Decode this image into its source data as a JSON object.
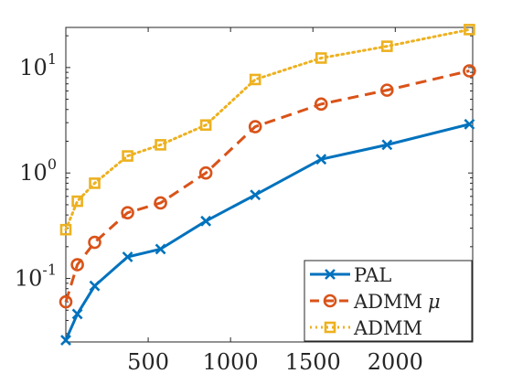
{
  "chart_data": {
    "type": "line",
    "title": "",
    "xlabel": "",
    "ylabel": "",
    "x_scale": "linear",
    "y_scale": "log",
    "xlim": [
      0,
      2470
    ],
    "ylim": [
      0.025,
      24
    ],
    "grid": false,
    "legend_position": "bottom-right",
    "x_ticks": [
      {
        "value": 500,
        "label": "500"
      },
      {
        "value": 1000,
        "label": "1000"
      },
      {
        "value": 1500,
        "label": "1500"
      },
      {
        "value": 2000,
        "label": "2000"
      }
    ],
    "y_ticks": [
      {
        "value": 0.1,
        "base": "10",
        "exp": "-1"
      },
      {
        "value": 1,
        "base": "10",
        "exp": "0"
      },
      {
        "value": 10,
        "base": "10",
        "exp": "1"
      }
    ],
    "series": [
      {
        "name": "PAL",
        "color": "#0072BD",
        "line_style": "solid",
        "marker": "x",
        "points": [
          [
            0,
            0.026
          ],
          [
            70,
            0.046
          ],
          [
            175,
            0.085
          ],
          [
            375,
            0.16
          ],
          [
            575,
            0.19
          ],
          [
            850,
            0.35
          ],
          [
            1150,
            0.62
          ],
          [
            1550,
            1.35
          ],
          [
            1950,
            1.85
          ],
          [
            2450,
            2.9
          ]
        ]
      },
      {
        "name": "ADMM",
        "name_suffix": "μ",
        "color": "#D95319",
        "line_style": "dashed",
        "marker": "circle",
        "points": [
          [
            0,
            0.06
          ],
          [
            70,
            0.135
          ],
          [
            175,
            0.22
          ],
          [
            375,
            0.42
          ],
          [
            575,
            0.52
          ],
          [
            850,
            1.0
          ],
          [
            1150,
            2.75
          ],
          [
            1550,
            4.5
          ],
          [
            1950,
            6.1
          ],
          [
            2450,
            9.3
          ]
        ]
      },
      {
        "name": "ADMM",
        "color": "#EDB120",
        "line_style": "dotted",
        "marker": "square",
        "points": [
          [
            0,
            0.29
          ],
          [
            70,
            0.54
          ],
          [
            175,
            0.8
          ],
          [
            375,
            1.45
          ],
          [
            575,
            1.85
          ],
          [
            850,
            2.85
          ],
          [
            1150,
            7.7
          ],
          [
            1550,
            12.3
          ],
          [
            1950,
            15.9
          ],
          [
            2450,
            22.9
          ]
        ]
      }
    ]
  }
}
